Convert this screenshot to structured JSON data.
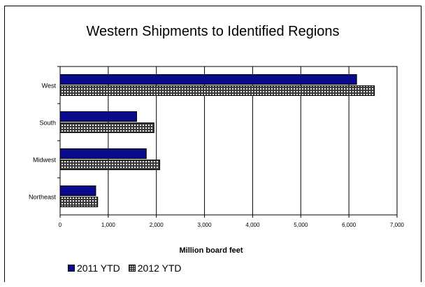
{
  "chart_data": {
    "type": "bar",
    "orientation": "horizontal",
    "title": "Western Shipments to Identified Regions",
    "xlabel": "Million board feet",
    "ylabel": "",
    "categories": [
      "West",
      "South",
      "Midwest",
      "Northeast"
    ],
    "series": [
      {
        "name": "2011 YTD",
        "values": [
          6160,
          1590,
          1790,
          740
        ],
        "color": "#0a0a8c"
      },
      {
        "name": "2012 YTD",
        "values": [
          6530,
          1950,
          2070,
          780
        ],
        "color": "#555555",
        "pattern": "dotted"
      }
    ],
    "xlim": [
      0,
      7000
    ],
    "xticks": [
      0,
      1000,
      2000,
      3000,
      4000,
      5000,
      6000,
      7000
    ],
    "xtick_labels": [
      "0",
      "1,000",
      "2,000",
      "3,000",
      "4,000",
      "5,000",
      "6,000",
      "7,000"
    ],
    "grid": "vertical",
    "legend": "bottom-left"
  }
}
